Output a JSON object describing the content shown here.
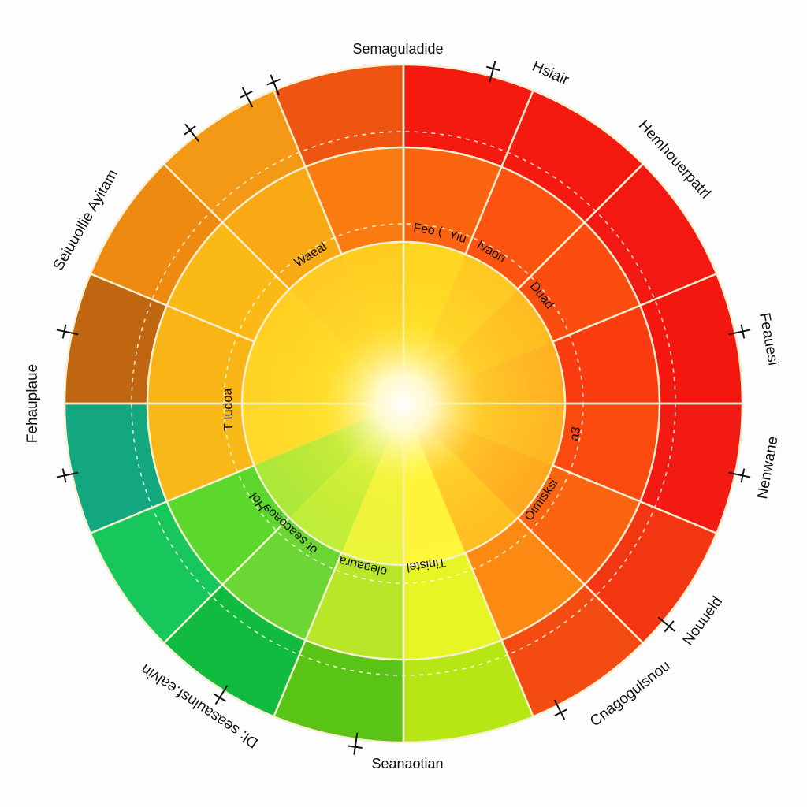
{
  "chart_data": {
    "type": "pie",
    "title": "Semaguladide",
    "bottom_label": "Seanaotian",
    "rings": 3,
    "sectors": 16,
    "colors": {
      "outer": [
        "#f41a10",
        "#f51a10",
        "#f41812",
        "#f3170f",
        "#f21a12",
        "#f23612",
        "#f34b12",
        "#b7e615",
        "#59c416",
        "#11bb40",
        "#17c75c",
        "#13a780",
        "#c06510",
        "#ef8a10",
        "#f39915",
        "#ef5512"
      ],
      "middle": [
        "#fb6510",
        "#fc5410",
        "#fb4d10",
        "#fb3b10",
        "#fb4a10",
        "#fb6512",
        "#fc8a12",
        "#e8f525",
        "#b8e628",
        "#6cd634",
        "#5cd72c",
        "#f7b818",
        "#f9b516",
        "#fab915",
        "#f9a914",
        "#fb7d12"
      ],
      "inner": [
        "#ffd520",
        "#ffc820",
        "#ffbb20",
        "#ffb022",
        "#ffb522",
        "#ffa81f",
        "#ffbe20",
        "#fff63a",
        "#ebf63a",
        "#bcee39",
        "#a8e83a",
        "#ffd82a",
        "#ffd225",
        "#ffd022",
        "#ffca22",
        "#ffcc20"
      ],
      "center": "#fff23a",
      "center_glow": "#ffffff",
      "lines": "#f6f0d0"
    },
    "outer_labels": [
      "Hsiair",
      "Hemhouerpatrl",
      "Feauesi",
      "Nenwane",
      "Nouueld",
      "Cnagogulsnou",
      "Dl: seasaulnsf.ealvin",
      "Fehauplaue",
      "Seiuuollie Ayitam"
    ],
    "inner_labels": [
      "Feo (",
      "Yiu",
      "Ivaon",
      "Duad",
      "a3",
      "Oimisksi",
      "Tinistel",
      "oleaaura",
      "ot seacoaos",
      "Hol",
      "T Iudoa",
      "Waeal"
    ]
  }
}
